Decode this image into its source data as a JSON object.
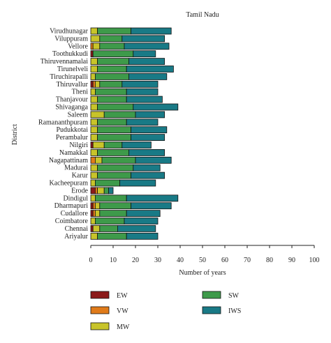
{
  "chart_data": {
    "type": "bar",
    "orientation": "horizontal",
    "stacked": true,
    "title": "Tamil Nadu",
    "xlabel": "Number of years",
    "ylabel": "District",
    "xlim": [
      0,
      100
    ],
    "x_ticks": [
      0,
      10,
      20,
      30,
      40,
      50,
      60,
      70,
      80,
      90,
      100
    ],
    "grid": false,
    "legend_placement": "bottom",
    "categories": [
      "Virudhunagar",
      "Viluppuram",
      "Vellore",
      "Toothukkudi",
      "Thiruvennamalai",
      "Tirunelveli",
      "Tiruchirapalli",
      "Thiruvallur",
      "Theni",
      "Thanjavour",
      "Shivaganga",
      "Saleem",
      "Ramananthpuram",
      "Pudukkotai",
      "Perambalur",
      "Nilgiri",
      "Namakkal",
      "Nagapattinam",
      "Madurai",
      "Karur",
      "Kacheepuram",
      "Erode",
      "Dindigul",
      "Dharmapuri",
      "Cudallore",
      "Coimbatore",
      "Chennai",
      "Ariyalur"
    ],
    "series": [
      {
        "name": "EW",
        "color": "#8b1a1a",
        "values": [
          0,
          0,
          0,
          1,
          0,
          0,
          0,
          1,
          0,
          0,
          0,
          0,
          0,
          0,
          0,
          1,
          0,
          0,
          0,
          0,
          0,
          2,
          0,
          1,
          1,
          0,
          1,
          0
        ]
      },
      {
        "name": "VW",
        "color": "#e07b1a",
        "values": [
          0,
          0,
          1,
          0,
          0,
          0,
          0,
          1,
          0,
          0,
          0,
          0,
          0,
          0,
          0,
          0,
          0,
          2,
          0,
          0,
          0,
          1,
          0,
          1,
          1,
          0,
          0,
          0
        ]
      },
      {
        "name": "MW",
        "color": "#c8c42a",
        "values": [
          3,
          4,
          3,
          0,
          3,
          3,
          2,
          2,
          2,
          3,
          3,
          6,
          3,
          3,
          3,
          5,
          3,
          3,
          3,
          3,
          2,
          3,
          2,
          2,
          2,
          2,
          3,
          3
        ]
      },
      {
        "name": "SW",
        "color": "#3e9a4a",
        "values": [
          15,
          10,
          11,
          18,
          14,
          13,
          15,
          10,
          14,
          13,
          16,
          14,
          13,
          15,
          15,
          8,
          14,
          15,
          16,
          15,
          11,
          2,
          14,
          14,
          12,
          13,
          8,
          13
        ]
      },
      {
        "name": "IWS",
        "color": "#197a86",
        "values": [
          18,
          19,
          20,
          10,
          16,
          21,
          17,
          16,
          14,
          16,
          20,
          13,
          14,
          16,
          15,
          13,
          16,
          16,
          12,
          15,
          16,
          2,
          23,
          18,
          15,
          15,
          17,
          14
        ]
      }
    ]
  }
}
